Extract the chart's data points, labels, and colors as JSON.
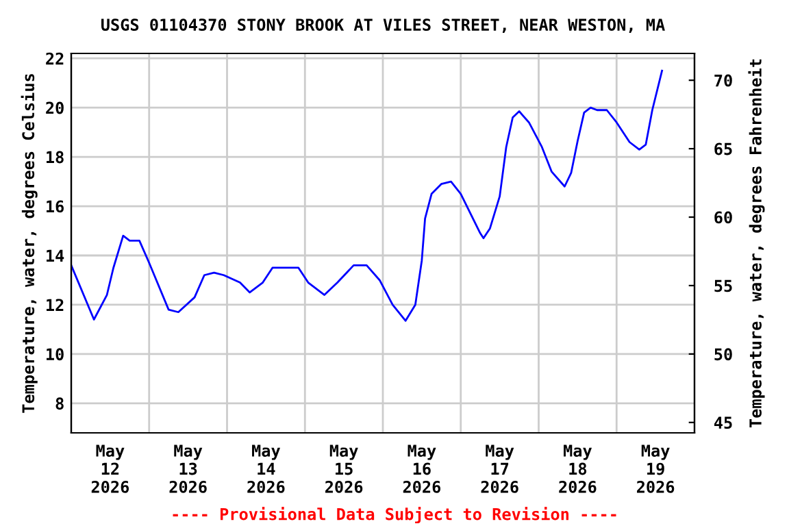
{
  "chart_data": {
    "type": "line",
    "title": "USGS 01104370 STONY BROOK AT VILES STREET, NEAR WESTON, MA",
    "ylabel": "Temperature, water, degrees Celsius",
    "y2label": "Temperature, water, degrees Fahrenheit",
    "annotations": [
      "---- Provisional Data Subject to Revision ----"
    ],
    "x": [
      "2026-05-12T00:00",
      "2026-05-12T07:00",
      "2026-05-12T11:00",
      "2026-05-12T13:00",
      "2026-05-12T16:00",
      "2026-05-12T18:00",
      "2026-05-12T21:00",
      "2026-05-13T00:00",
      "2026-05-13T06:00",
      "2026-05-13T09:00",
      "2026-05-13T14:00",
      "2026-05-13T17:00",
      "2026-05-13T20:00",
      "2026-05-13T23:00",
      "2026-05-14T04:00",
      "2026-05-14T07:00",
      "2026-05-14T11:00",
      "2026-05-14T14:00",
      "2026-05-14T22:00",
      "2026-05-15T01:00",
      "2026-05-15T06:00",
      "2026-05-15T10:00",
      "2026-05-15T15:00",
      "2026-05-15T19:00",
      "2026-05-15T23:00",
      "2026-05-16T03:00",
      "2026-05-16T07:00",
      "2026-05-16T10:00",
      "2026-05-16T12:00",
      "2026-05-16T13:00",
      "2026-05-16T15:00",
      "2026-05-16T18:00",
      "2026-05-16T21:00",
      "2026-05-17T00:00",
      "2026-05-17T03:00",
      "2026-05-17T06:00",
      "2026-05-17T07:00",
      "2026-05-17T09:00",
      "2026-05-17T12:00",
      "2026-05-17T14:00",
      "2026-05-17T16:00",
      "2026-05-17T18:00",
      "2026-05-17T21:00",
      "2026-05-18T01:00",
      "2026-05-18T04:00",
      "2026-05-18T08:00",
      "2026-05-18T10:00",
      "2026-05-18T12:00",
      "2026-05-18T14:00",
      "2026-05-18T16:00",
      "2026-05-18T18:00",
      "2026-05-18T21:00",
      "2026-05-19T00:00",
      "2026-05-19T04:00",
      "2026-05-19T07:00",
      "2026-05-19T09:00",
      "2026-05-19T11:00",
      "2026-05-19T14:00"
    ],
    "series": [
      {
        "color": "#0000ff",
        "values": [
          13.6,
          11.4,
          12.4,
          13.5,
          14.8,
          14.6,
          14.6,
          13.7,
          11.8,
          11.7,
          12.3,
          13.2,
          13.3,
          13.2,
          12.9,
          12.5,
          12.9,
          13.5,
          13.5,
          12.9,
          12.4,
          12.9,
          13.6,
          13.6,
          13.0,
          12.0,
          11.35,
          12.0,
          13.8,
          15.5,
          16.5,
          16.9,
          17.0,
          16.5,
          15.7,
          14.9,
          14.7,
          15.1,
          16.4,
          18.4,
          19.6,
          19.85,
          19.4,
          18.4,
          17.4,
          16.8,
          17.35,
          18.65,
          19.8,
          20.0,
          19.9,
          19.9,
          19.4,
          18.6,
          18.3,
          18.5,
          19.9,
          21.5
        ]
      }
    ],
    "xlim": [
      "2026-05-12T00:00",
      "2026-05-20T00:00"
    ],
    "xticks": [
      {
        "value": "2026-05-12T12:00",
        "label": "May\n12\n2026"
      },
      {
        "value": "2026-05-13T12:00",
        "label": "May\n13\n2026"
      },
      {
        "value": "2026-05-14T12:00",
        "label": "May\n14\n2026"
      },
      {
        "value": "2026-05-15T12:00",
        "label": "May\n15\n2026"
      },
      {
        "value": "2026-05-16T12:00",
        "label": "May\n16\n2026"
      },
      {
        "value": "2026-05-17T12:00",
        "label": "May\n17\n2026"
      },
      {
        "value": "2026-05-18T12:00",
        "label": "May\n18\n2026"
      },
      {
        "value": "2026-05-19T12:00",
        "label": "May\n19\n2026"
      },
      {
        "value": "2026-05-13T00:00",
        "label": null
      },
      {
        "value": "2026-05-14T00:00",
        "label": null
      },
      {
        "value": "2026-05-15T00:00",
        "label": null
      },
      {
        "value": "2026-05-16T00:00",
        "label": null
      },
      {
        "value": "2026-05-17T00:00",
        "label": null
      },
      {
        "value": "2026-05-18T00:00",
        "label": null
      },
      {
        "value": "2026-05-19T00:00",
        "label": null
      }
    ],
    "ylim": [
      6.8,
      22.2
    ],
    "yticks": [
      8,
      10,
      12,
      14,
      16,
      18,
      20,
      22
    ],
    "y2lim": [
      44.24,
      71.96
    ],
    "y2ticks": [
      45,
      50,
      55,
      60,
      65,
      70
    ],
    "grid": true,
    "legend": false,
    "marker": "none",
    "line_style": "solid"
  }
}
